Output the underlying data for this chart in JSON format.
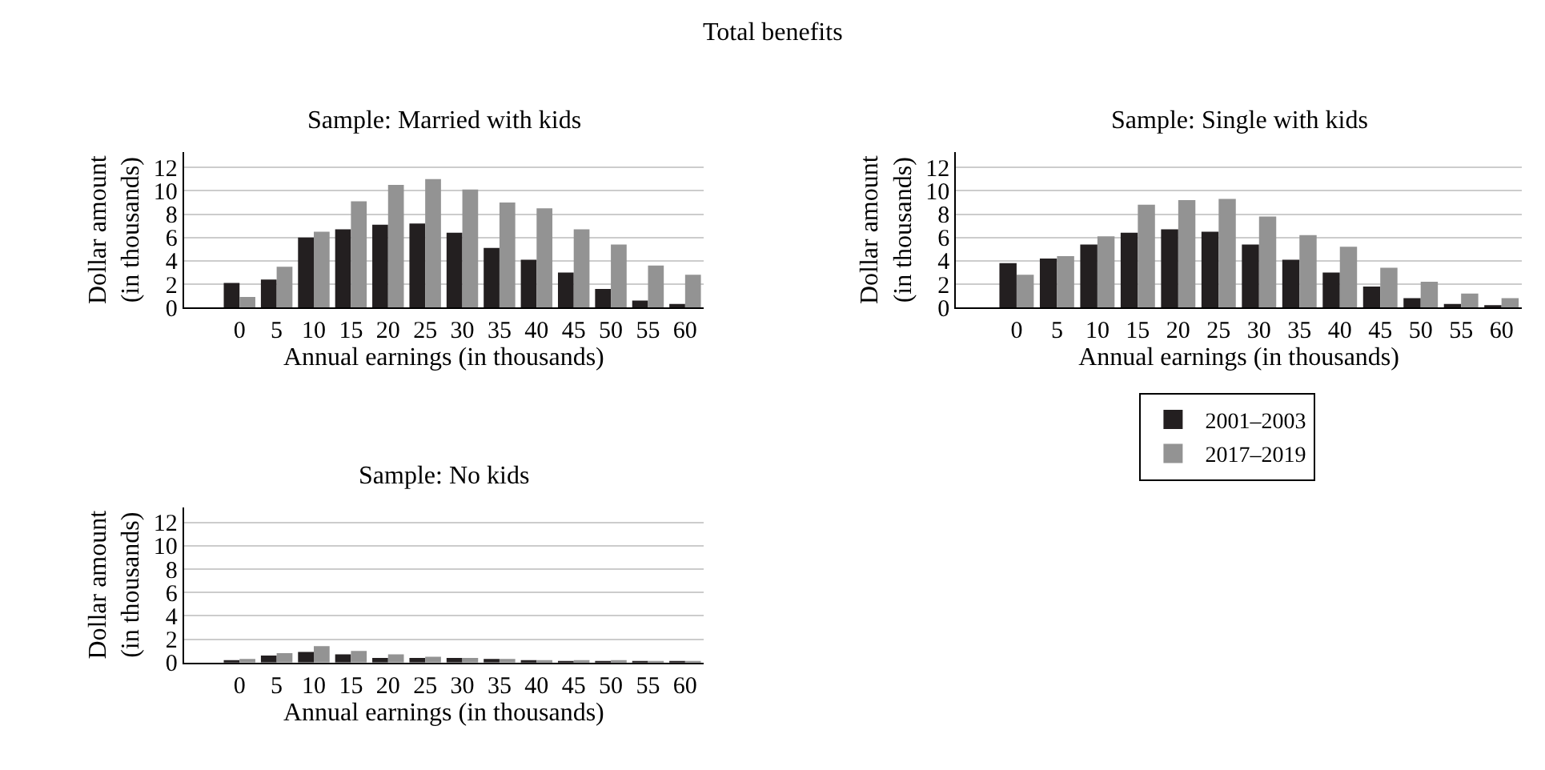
{
  "chart_data": [
    {
      "type": "bar",
      "title": "Sample: Married with kids",
      "annotations": [
        "Total benefits"
      ],
      "xlabel": "Annual earnings (in thousands)",
      "ylabel": "Dollar amount\n(in thousands)",
      "categories": [
        "0",
        "5",
        "10",
        "15",
        "20",
        "25",
        "30",
        "35",
        "40",
        "45",
        "50",
        "55",
        "60"
      ],
      "series": [
        {
          "name": "2001–2003",
          "color": "#231f20",
          "values": [
            2.1,
            2.4,
            6.0,
            6.7,
            7.1,
            7.2,
            6.4,
            5.1,
            4.1,
            3.0,
            1.6,
            0.6,
            0.3
          ]
        },
        {
          "name": "2017–2019",
          "color": "#939393",
          "values": [
            0.9,
            3.5,
            6.5,
            9.1,
            10.5,
            11.0,
            10.1,
            9.0,
            8.5,
            6.7,
            5.4,
            3.6,
            2.8
          ]
        }
      ],
      "ylim": [
        0,
        13.3
      ],
      "yticks": [
        0,
        2,
        4,
        6,
        8,
        10,
        12
      ],
      "grid": "y",
      "legend": "right"
    },
    {
      "type": "bar",
      "title": "Sample: Single with kids",
      "xlabel": "Annual earnings (in thousands)",
      "ylabel": "Dollar amount\n(in thousands)",
      "categories": [
        "0",
        "5",
        "10",
        "15",
        "20",
        "25",
        "30",
        "35",
        "40",
        "45",
        "50",
        "55",
        "60"
      ],
      "series": [
        {
          "name": "2001–2003",
          "color": "#231f20",
          "values": [
            3.8,
            4.2,
            5.4,
            6.4,
            6.7,
            6.5,
            5.4,
            4.1,
            3.0,
            1.8,
            0.8,
            0.3,
            0.2
          ]
        },
        {
          "name": "2017–2019",
          "color": "#939393",
          "values": [
            2.8,
            4.4,
            6.1,
            8.8,
            9.2,
            9.3,
            7.8,
            6.2,
            5.2,
            3.4,
            2.2,
            1.2,
            0.8
          ]
        }
      ],
      "ylim": [
        0,
        13.3
      ],
      "yticks": [
        0,
        2,
        4,
        6,
        8,
        10,
        12
      ],
      "grid": "y",
      "legend": "right"
    },
    {
      "type": "bar",
      "title": "Sample: No kids",
      "xlabel": "Annual earnings (in thousands)",
      "ylabel": "Dollar amount\n(in thousands)",
      "categories": [
        "0",
        "5",
        "10",
        "15",
        "20",
        "25",
        "30",
        "35",
        "40",
        "45",
        "50",
        "55",
        "60"
      ],
      "series": [
        {
          "name": "2001–2003",
          "color": "#231f20",
          "values": [
            0.2,
            0.6,
            0.9,
            0.7,
            0.4,
            0.4,
            0.4,
            0.3,
            0.2,
            0.1,
            0.1,
            0.1,
            0.1
          ]
        },
        {
          "name": "2017–2019",
          "color": "#939393",
          "values": [
            0.3,
            0.8,
            1.4,
            1.0,
            0.7,
            0.5,
            0.4,
            0.3,
            0.2,
            0.2,
            0.2,
            0.1,
            0.1
          ]
        }
      ],
      "ylim": [
        0,
        13.3
      ],
      "yticks": [
        0,
        2,
        4,
        6,
        8,
        10,
        12
      ],
      "grid": "y",
      "legend": "right"
    }
  ]
}
